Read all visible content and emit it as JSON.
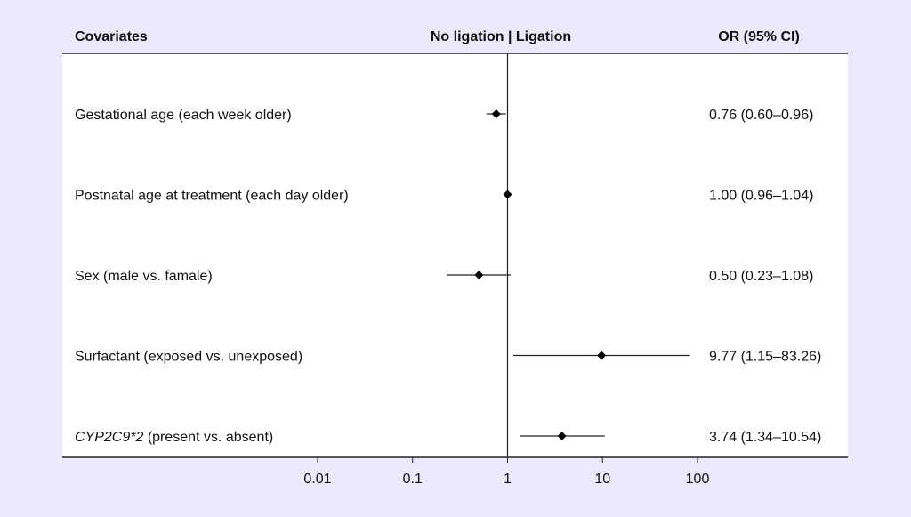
{
  "headers": {
    "covariates": "Covariates",
    "direction": "No ligation | Ligation",
    "or": "OR (95% CI)"
  },
  "chart_data": {
    "type": "forest",
    "x_scale": "log",
    "xlim": [
      0.01,
      100
    ],
    "reference_line": 1,
    "x_ticks": [
      {
        "value": 0.01,
        "label": "0.01"
      },
      {
        "value": 0.1,
        "label": "0.1"
      },
      {
        "value": 1,
        "label": "1"
      },
      {
        "value": 10,
        "label": "10"
      },
      {
        "value": 100,
        "label": "100"
      }
    ],
    "rows": [
      {
        "label": "Gestational age (each week older)",
        "label_italic": "",
        "or": 0.76,
        "lo": 0.6,
        "hi": 0.96,
        "text": "0.76 (0.60–0.96)"
      },
      {
        "label": "Postnatal age at treatment (each day older)",
        "label_italic": "",
        "or": 1.0,
        "lo": 0.96,
        "hi": 1.04,
        "text": "1.00 (0.96–1.04)"
      },
      {
        "label": "Sex (male vs. famale)",
        "label_italic": "",
        "or": 0.5,
        "lo": 0.23,
        "hi": 1.08,
        "text": "0.50 (0.23–1.08)"
      },
      {
        "label": "Surfactant (exposed vs. unexposed)",
        "label_italic": "",
        "or": 9.77,
        "lo": 1.15,
        "hi": 83.26,
        "text": "9.77 (1.15–83.26)"
      },
      {
        "label": " (present vs. absent)",
        "label_italic": "CYP2C9*2",
        "or": 3.74,
        "lo": 1.34,
        "hi": 10.54,
        "text": "3.74 (1.34–10.54)"
      }
    ]
  }
}
